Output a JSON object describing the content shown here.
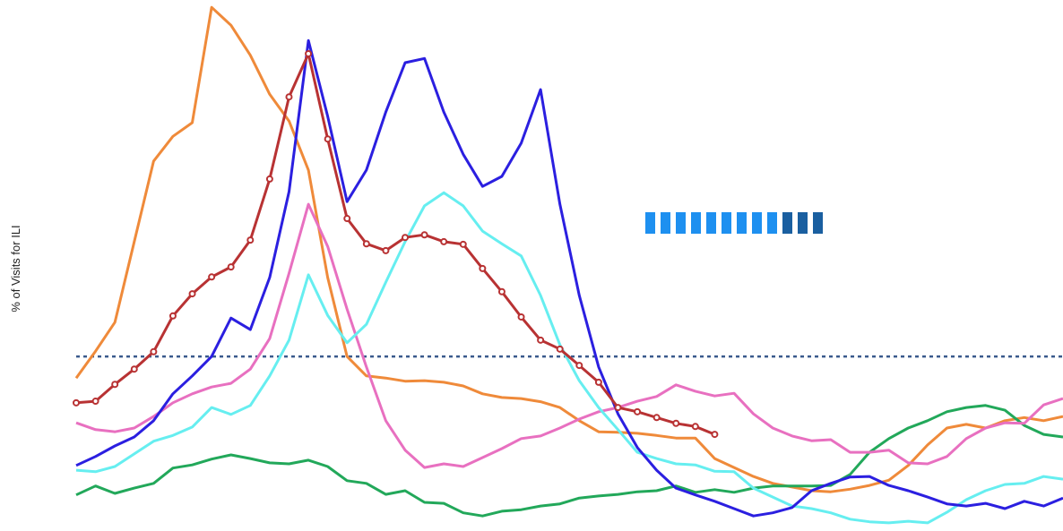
{
  "chart_data": {
    "type": "line",
    "ylabel": "% of Visits for ILI",
    "categories": [
      null,
      null,
      null,
      null,
      null,
      null,
      null,
      null,
      null,
      null,
      null,
      null,
      null,
      null,
      null,
      null,
      null,
      null,
      null,
      null,
      null,
      null,
      null,
      null,
      null,
      null,
      null,
      null,
      null,
      null,
      null,
      null,
      null,
      null,
      null,
      null,
      null,
      null,
      null,
      null,
      null,
      null,
      null,
      null,
      null,
      null,
      null,
      null,
      null,
      null,
      null,
      null
    ],
    "ylim": [
      0,
      10
    ],
    "baseline": 3.23,
    "baseline_color": "#3a5a8c",
    "series": [
      {
        "color": "#ef8a3a",
        "values": [
          2.82,
          3.33,
          3.88,
          5.41,
          6.94,
          7.41,
          7.67,
          9.86,
          9.52,
          8.95,
          8.21,
          7.7,
          6.77,
          4.73,
          3.23,
          2.86,
          2.82,
          2.76,
          2.77,
          2.74,
          2.67,
          2.52,
          2.45,
          2.43,
          2.37,
          2.26,
          2.01,
          1.8,
          1.79,
          1.77,
          1.73,
          1.68,
          1.68,
          1.29,
          1.12,
          0.95,
          0.82,
          0.75,
          0.68,
          0.66,
          0.71,
          0.78,
          0.88,
          1.16,
          1.55,
          1.87,
          1.94,
          1.87,
          2.01,
          2.07,
          2.01,
          2.09
        ]
      },
      {
        "color": "#22a85a",
        "values": [
          0.6,
          0.77,
          0.63,
          0.73,
          0.82,
          1.11,
          1.17,
          1.28,
          1.36,
          1.29,
          1.21,
          1.19,
          1.26,
          1.14,
          0.87,
          0.82,
          0.61,
          0.68,
          0.46,
          0.44,
          0.26,
          0.2,
          0.29,
          0.32,
          0.39,
          0.43,
          0.54,
          0.58,
          0.61,
          0.66,
          0.68,
          0.77,
          0.65,
          0.7,
          0.65,
          0.73,
          0.77,
          0.77,
          0.77,
          0.78,
          0.99,
          1.41,
          1.67,
          1.87,
          2.01,
          2.18,
          2.26,
          2.3,
          2.21,
          1.92,
          1.75,
          1.7
        ]
      },
      {
        "color": "#e870c0",
        "values": [
          1.97,
          1.84,
          1.8,
          1.87,
          2.09,
          2.35,
          2.52,
          2.65,
          2.72,
          2.99,
          3.57,
          4.81,
          6.12,
          5.32,
          4.13,
          3.03,
          2.01,
          1.45,
          1.12,
          1.19,
          1.14,
          1.31,
          1.48,
          1.67,
          1.72,
          1.87,
          2.04,
          2.18,
          2.26,
          2.38,
          2.47,
          2.69,
          2.57,
          2.48,
          2.53,
          2.14,
          1.87,
          1.72,
          1.63,
          1.65,
          1.41,
          1.41,
          1.45,
          1.21,
          1.19,
          1.33,
          1.67,
          1.87,
          1.97,
          1.96,
          2.31,
          2.43
        ]
      },
      {
        "color": "#66eef0",
        "values": [
          1.07,
          1.04,
          1.14,
          1.38,
          1.62,
          1.73,
          1.89,
          2.26,
          2.13,
          2.3,
          2.86,
          3.54,
          4.78,
          4.01,
          3.49,
          3.84,
          4.64,
          5.41,
          6.09,
          6.34,
          6.09,
          5.61,
          5.37,
          5.14,
          4.39,
          3.45,
          2.77,
          2.26,
          1.84,
          1.41,
          1.29,
          1.19,
          1.17,
          1.05,
          1.04,
          0.73,
          0.56,
          0.39,
          0.34,
          0.26,
          0.14,
          0.09,
          0.07,
          0.1,
          0.07,
          0.27,
          0.51,
          0.68,
          0.8,
          0.82,
          0.95,
          0.9
        ]
      },
      {
        "color": "#2b1fe0",
        "values": [
          1.16,
          1.33,
          1.53,
          1.7,
          2.01,
          2.52,
          2.86,
          3.23,
          3.96,
          3.74,
          4.73,
          6.36,
          9.23,
          7.79,
          6.17,
          6.77,
          7.87,
          8.81,
          8.89,
          7.87,
          7.07,
          6.46,
          6.65,
          7.28,
          8.3,
          6.12,
          4.39,
          3.03,
          2.14,
          1.5,
          1.07,
          0.73,
          0.6,
          0.48,
          0.34,
          0.2,
          0.26,
          0.36,
          0.68,
          0.82,
          0.94,
          0.95,
          0.78,
          0.68,
          0.56,
          0.43,
          0.39,
          0.44,
          0.34,
          0.48,
          0.39,
          0.54
        ]
      },
      {
        "color": "#b83233",
        "markers": true,
        "values": [
          2.35,
          2.38,
          2.7,
          2.99,
          3.32,
          4.0,
          4.42,
          4.74,
          4.93,
          5.44,
          6.6,
          8.16,
          8.98,
          7.36,
          5.85,
          5.37,
          5.24,
          5.49,
          5.54,
          5.41,
          5.36,
          4.9,
          4.46,
          3.98,
          3.54,
          3.37,
          3.06,
          2.74,
          2.26,
          2.18,
          2.07,
          1.96,
          1.9,
          1.75,
          null,
          null,
          null,
          null,
          null,
          null,
          null,
          null,
          null,
          null,
          null,
          null,
          null,
          null,
          null,
          null,
          null,
          null
        ]
      }
    ]
  }
}
